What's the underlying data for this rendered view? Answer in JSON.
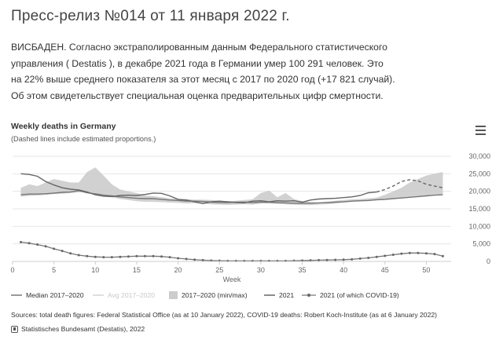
{
  "page": {
    "title": "Пресс-релиз №014 от 11 января 2022 г.",
    "lead_lines": [
      "ВИСБАДЕН. Согласно экстраполированным данным Федерального статистического",
      "управления ( Destatis ), в декабре 2021 года в Германии умер 100 291 человек. Это",
      "на 22% выше среднего показателя за этот месяц с 2017 по 2020 год (+17 821 случай).",
      "Об этом свидетельствует специальная оценка предварительных цифр смертности."
    ]
  },
  "chart": {
    "title": "Weekly deaths in Germany",
    "subtitle": "(Dashed lines include estimated proportions.)",
    "menu_icon": "hamburger-menu-icon",
    "legend": [
      {
        "label": "Median 2017–2020",
        "faded": false
      },
      {
        "label": "Avg 2017–2020",
        "faded": true
      },
      {
        "label": "2017–2020 (min/max)",
        "faded": false
      },
      {
        "label": "2021",
        "faded": false
      },
      {
        "label": "2021 (of which COVID-19)",
        "faded": false
      }
    ],
    "sources": "Sources: total death figures: Federal Statistical Office (as at 10 January 2022), COVID-19 deaths: Robert Koch-Institute (as at 6 January 2022)",
    "credits": "Statistisches Bundesamt (Destatis), 2022",
    "colors": {
      "range_fill": "#cccccc",
      "median_line": "#777777",
      "line_2021": "#666666",
      "covid_line": "#777777",
      "grid": "#e6e6e6",
      "axis_text": "#666666"
    }
  },
  "chart_data": {
    "type": "line",
    "title": "Weekly deaths in Germany",
    "subtitle": "(Dashed lines include estimated proportions.)",
    "xlabel": "Week",
    "ylabel": "",
    "xlim": [
      0,
      53
    ],
    "ylim": [
      0,
      30000
    ],
    "x_ticks": [
      0,
      5,
      10,
      15,
      20,
      25,
      30,
      35,
      40,
      45,
      50
    ],
    "y_ticks": [
      0,
      5000,
      10000,
      15000,
      20000,
      25000,
      30000
    ],
    "y_tick_labels": [
      "0",
      "5,000",
      "10,000",
      "15,000",
      "20,000",
      "25,000",
      "30,000"
    ],
    "grid": true,
    "legend_position": "bottom",
    "weeks": [
      1,
      2,
      3,
      4,
      5,
      6,
      7,
      8,
      9,
      10,
      11,
      12,
      13,
      14,
      15,
      16,
      17,
      18,
      19,
      20,
      21,
      22,
      23,
      24,
      25,
      26,
      27,
      28,
      29,
      30,
      31,
      32,
      33,
      34,
      35,
      36,
      37,
      38,
      39,
      40,
      41,
      42,
      43,
      44,
      45,
      46,
      47,
      48,
      49,
      50,
      51,
      52
    ],
    "series": [
      {
        "name": "2017–2020 (min/max)",
        "kind": "range",
        "min": [
          18500,
          18700,
          18800,
          19000,
          19200,
          19300,
          19500,
          19700,
          19800,
          19500,
          18700,
          18300,
          17800,
          17500,
          17200,
          17000,
          17000,
          16900,
          16800,
          16700,
          16500,
          16600,
          16500,
          16300,
          16200,
          16100,
          16200,
          16300,
          16200,
          16500,
          16500,
          16400,
          16300,
          16200,
          16100,
          16100,
          16200,
          16300,
          16500,
          16800,
          17000,
          17100,
          17200,
          17400,
          17500,
          17800,
          18000,
          18300,
          18500,
          18800,
          19000,
          19200
        ],
        "max": [
          21000,
          22000,
          21500,
          22500,
          23500,
          23000,
          22500,
          22500,
          25500,
          26800,
          24500,
          22000,
          20500,
          20000,
          19500,
          18800,
          18600,
          18300,
          18000,
          17800,
          17800,
          17600,
          17600,
          17500,
          17300,
          17200,
          17300,
          17500,
          17700,
          19500,
          20200,
          18300,
          19500,
          17800,
          17200,
          17000,
          16800,
          17000,
          17300,
          17500,
          17700,
          17800,
          18000,
          18200,
          19000,
          20000,
          21000,
          22500,
          23500,
          24500,
          25000,
          25500
        ]
      },
      {
        "name": "Median 2017–2020",
        "kind": "line",
        "values": [
          19000,
          19200,
          19200,
          19300,
          19500,
          19700,
          19800,
          20200,
          19600,
          19300,
          18900,
          18700,
          18400,
          18200,
          18000,
          17900,
          17900,
          17700,
          17500,
          17400,
          17200,
          17200,
          17100,
          16900,
          16800,
          16800,
          16900,
          16900,
          16800,
          16900,
          16900,
          16800,
          16700,
          16600,
          16600,
          16600,
          16700,
          16800,
          16900,
          17000,
          17200,
          17300,
          17400,
          17600,
          17700,
          17900,
          18100,
          18300,
          18500,
          18700,
          18900,
          19000
        ]
      },
      {
        "name": "2021",
        "kind": "line",
        "values": [
          25000,
          24800,
          24300,
          22800,
          21800,
          21000,
          20600,
          20400,
          19800,
          19000,
          18600,
          18500,
          18800,
          18900,
          18800,
          19100,
          19500,
          19400,
          18700,
          17700,
          17500,
          17000,
          16500,
          17000,
          17200,
          17000,
          16800,
          16700,
          17200,
          17300,
          17000,
          17300,
          17200,
          17300,
          16900,
          17500,
          17800,
          17900,
          18000,
          18200,
          18400,
          18800,
          19600,
          19800,
          20500,
          21500,
          22800,
          23300,
          23000,
          22000,
          21500,
          21000
        ],
        "estimated_from_week": 44
      },
      {
        "name": "2021 (of which COVID-19)",
        "kind": "line",
        "values": [
          5500,
          5200,
          4800,
          4300,
          3600,
          3000,
          2300,
          1800,
          1500,
          1300,
          1200,
          1200,
          1300,
          1400,
          1500,
          1500,
          1500,
          1400,
          1200,
          900,
          700,
          500,
          350,
          250,
          200,
          150,
          150,
          150,
          150,
          150,
          150,
          150,
          150,
          200,
          250,
          300,
          350,
          400,
          450,
          500,
          600,
          800,
          1000,
          1300,
          1600,
          1900,
          2200,
          2400,
          2400,
          2300,
          2100,
          1500
        ]
      }
    ]
  }
}
